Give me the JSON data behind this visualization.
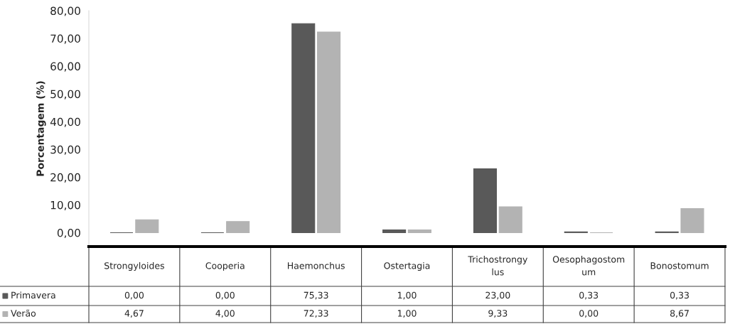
{
  "chart_data": {
    "type": "bar",
    "ylabel": "Porcentagem (%)",
    "categories": [
      "Strongyloides",
      "Cooperia",
      "Haemonchus",
      "Ostertagia",
      "Trichostrongylus",
      "Oesophagostomum",
      "Bonostomum"
    ],
    "series": [
      {
        "name": "Primavera",
        "color": "#595959",
        "values": [
          0.0,
          0.0,
          75.33,
          1.0,
          23.0,
          0.33,
          0.33
        ],
        "value_labels": [
          "0,00",
          "0,00",
          "75,33",
          "1,00",
          "23,00",
          "0,33",
          "0,33"
        ]
      },
      {
        "name": "Verão",
        "color": "#b3b3b3",
        "values": [
          4.67,
          4.0,
          72.33,
          1.0,
          9.33,
          0.0,
          8.67
        ],
        "value_labels": [
          "4,67",
          "4,00",
          "72,33",
          "1,00",
          "9,33",
          "0,00",
          "8,67"
        ]
      }
    ],
    "ylim": [
      -5,
      80
    ],
    "yticks": [
      {
        "value": 0,
        "label": "0,00"
      },
      {
        "value": 10,
        "label": "10,00"
      },
      {
        "value": 20,
        "label": "20,00"
      },
      {
        "value": 30,
        "label": "30,00"
      },
      {
        "value": 40,
        "label": "40,00"
      },
      {
        "value": 50,
        "label": "50,00"
      },
      {
        "value": 60,
        "label": "60,00"
      },
      {
        "value": 70,
        "label": "70,00"
      },
      {
        "value": 80,
        "label": "80,00"
      }
    ],
    "grid": false,
    "legend": "bottom left"
  }
}
